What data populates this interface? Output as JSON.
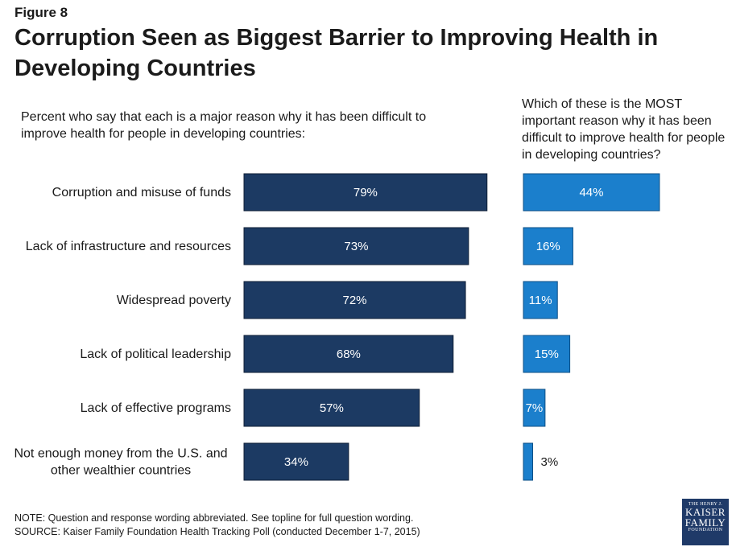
{
  "header": {
    "figure_label": "Figure 8",
    "title": "Corruption Seen as Biggest Barrier to Improving Health in Developing Countries"
  },
  "panels": {
    "left_subtitle": "Percent who say that each is a major reason why it has been difficult to improve health for people in developing countries:",
    "right_subtitle": "Which of these is the MOST important reason why it has been difficult to improve health for people in developing countries?"
  },
  "chart_data": {
    "type": "bar",
    "orientation": "horizontal",
    "categories": [
      [
        "Corruption and misuse of funds"
      ],
      [
        "Lack of infrastructure and resources"
      ],
      [
        "Widespread poverty"
      ],
      [
        "Lack of political leadership"
      ],
      [
        "Lack of effective programs"
      ],
      [
        "Not enough money from the U.S. and",
        "other wealthier countries"
      ]
    ],
    "series": [
      {
        "values": [
          79,
          73,
          72,
          68,
          57,
          34
        ],
        "labels": [
          "79%",
          "73%",
          "72%",
          "68%",
          "57%",
          "34%"
        ],
        "color": "#1c3a63"
      },
      {
        "values": [
          44,
          16,
          11,
          15,
          7,
          3
        ],
        "labels": [
          "44%",
          "16%",
          "11%",
          "15%",
          "7%",
          "3%"
        ],
        "color": "#1b7fcc"
      }
    ],
    "xlim": [
      0,
      100
    ],
    "grid": false,
    "legend": "none"
  },
  "footer": {
    "note": "NOTE: Question and response wording abbreviated. See  topline for full question wording.",
    "source": "SOURCE: Kaiser Family Foundation Health Tracking Poll (conducted December 1-7, 2015)"
  },
  "logo": {
    "line1": "THE HENRY J.",
    "line2": "KAISER",
    "line3": "FAMILY",
    "line4": "FOUNDATION"
  },
  "colors": {
    "bar_left": "#1c3a63",
    "bar_right": "#1b7fcc",
    "logo_bg": "#1f3a68"
  }
}
